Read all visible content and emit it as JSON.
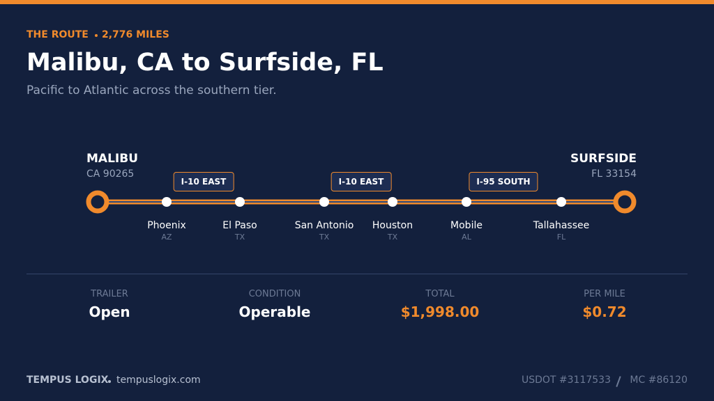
{
  "header": {
    "eyebrow": "THE ROUTE",
    "distance": "2,776 MILES",
    "title": "Malibu, CA to Surfside, FL",
    "subtitle": "Pacific to Atlantic across the southern tier."
  },
  "route": {
    "origin": {
      "name": "MALIBU",
      "detail": "CA 90265"
    },
    "destination": {
      "name": "SURFSIDE",
      "detail": "FL 33154"
    },
    "highways": [
      "I-10 EAST",
      "I-10 EAST",
      "I-95 SOUTH"
    ],
    "stops": [
      {
        "city": "Phoenix",
        "state": "AZ"
      },
      {
        "city": "El Paso",
        "state": "TX"
      },
      {
        "city": "San Antonio",
        "state": "TX"
      },
      {
        "city": "Houston",
        "state": "TX"
      },
      {
        "city": "Mobile",
        "state": "AL"
      },
      {
        "city": "Tallahassee",
        "state": "FL"
      }
    ]
  },
  "stats": [
    {
      "label": "TRAILER",
      "value": "Open"
    },
    {
      "label": "CONDITION",
      "value": "Operable"
    },
    {
      "label": "TOTAL",
      "value": "$1,998.00"
    },
    {
      "label": "PER MILE",
      "value": "$0.72"
    }
  ],
  "footer": {
    "company": "TEMPUS LOGIX",
    "website": "tempuslogix.com",
    "usdot": "USDOT #3117533",
    "mc": "MC #86120"
  }
}
